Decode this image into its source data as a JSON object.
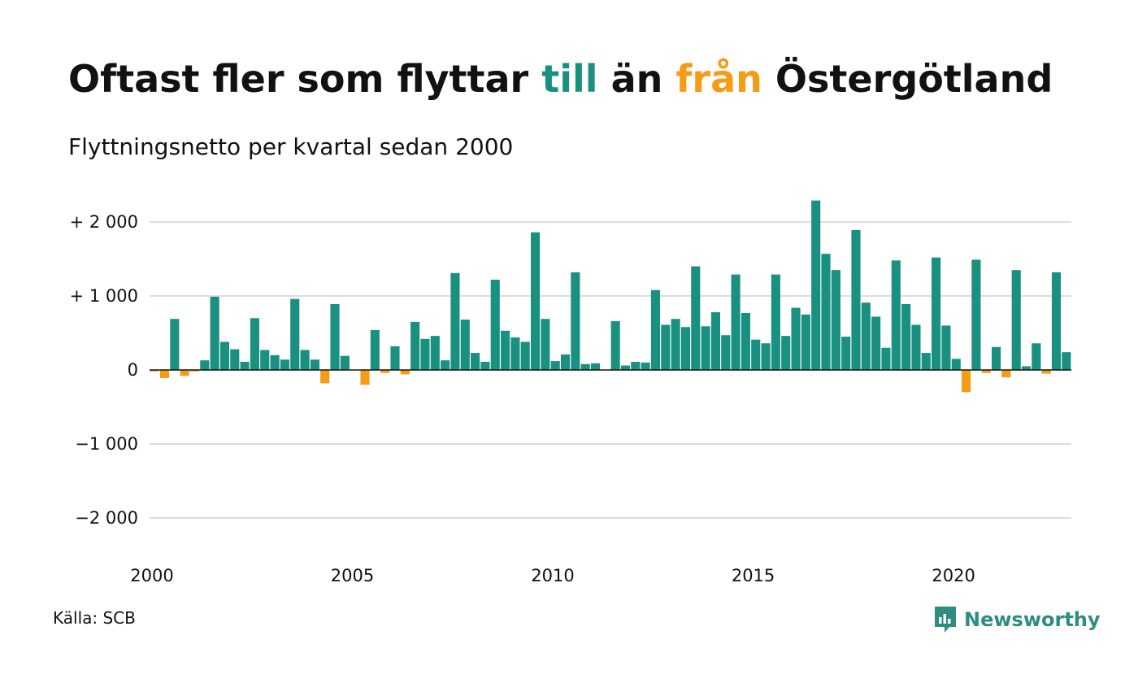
{
  "header": {
    "title_pre": "Oftast fler som flyttar ",
    "title_pos": "till",
    "title_mid": " än ",
    "title_neg": "från",
    "title_post": " Östergötland",
    "subtitle": "Flyttningsnetto per kvartal sedan 2000"
  },
  "footer": {
    "source": "Källa: SCB",
    "brand": "Newsworthy",
    "brand_icon": "newsworthy-logo-icon"
  },
  "colors": {
    "positive": "#1a9080",
    "negative": "#f59b16",
    "grid": "#dddddd",
    "zero_line": "#111111",
    "brand": "#2e8c80"
  },
  "chart_data": {
    "type": "bar",
    "title": "Oftast fler som flyttar till än från Östergötland",
    "subtitle": "Flyttningsnetto per kvartal sedan 2000",
    "xlabel": "",
    "ylabel": "",
    "ylim": [
      -2000,
      2000
    ],
    "grid": true,
    "y_ticks": [
      {
        "value": 2000,
        "label": "+ 2 000"
      },
      {
        "value": 1000,
        "label": "+ 1 000"
      },
      {
        "value": 0,
        "label": "0"
      },
      {
        "value": -1000,
        "label": "−1 000"
      },
      {
        "value": -2000,
        "label": "−2 000"
      }
    ],
    "x_ticks": [
      {
        "year": 2000,
        "label": "2000"
      },
      {
        "year": 2005,
        "label": "2005"
      },
      {
        "year": 2010,
        "label": "2010"
      },
      {
        "year": 2015,
        "label": "2015"
      },
      {
        "year": 2020,
        "label": "2020"
      }
    ],
    "start_year": 2000,
    "quarters_per_year": 4,
    "values": [
      -20,
      -110,
      690,
      -80,
      -20,
      130,
      990,
      380,
      280,
      110,
      700,
      270,
      200,
      140,
      960,
      270,
      140,
      -180,
      890,
      190,
      0,
      -200,
      540,
      -40,
      320,
      -60,
      650,
      420,
      460,
      130,
      1310,
      680,
      230,
      110,
      1220,
      530,
      440,
      380,
      1860,
      690,
      120,
      210,
      1320,
      80,
      90,
      0,
      660,
      60,
      110,
      100,
      1080,
      610,
      690,
      580,
      1400,
      590,
      780,
      470,
      1290,
      770,
      410,
      360,
      1290,
      460,
      840,
      750,
      2290,
      1570,
      1350,
      450,
      1890,
      910,
      720,
      300,
      1480,
      890,
      610,
      230,
      1520,
      600,
      150,
      -300,
      1490,
      -40,
      310,
      -100,
      1350,
      50,
      360,
      -50,
      1320,
      240
    ]
  }
}
